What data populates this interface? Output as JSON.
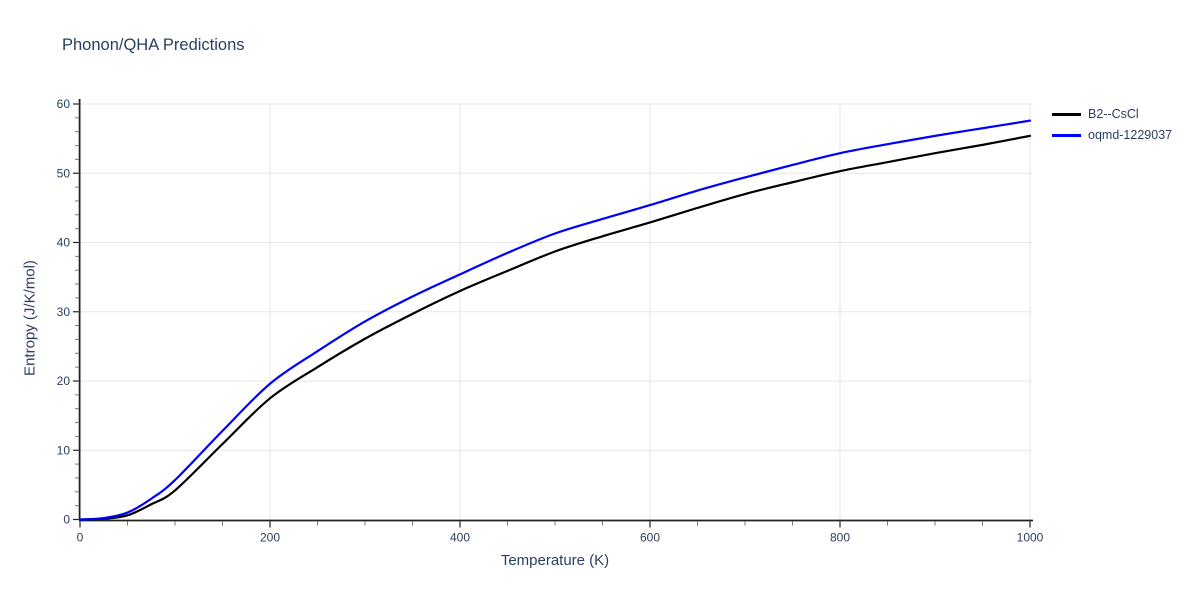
{
  "page": {
    "background": "#ffffff"
  },
  "chart_data": {
    "type": "line",
    "title": "Phonon/QHA Predictions",
    "xlabel": "Temperature (K)",
    "ylabel": "Entropy (J/K/mol)",
    "xlim": [
      0,
      1000
    ],
    "ylim": [
      0,
      60
    ],
    "x_major_ticks": [
      0,
      200,
      400,
      600,
      800,
      1000
    ],
    "x_minor_tick_step": 50,
    "y_major_ticks": [
      0,
      10,
      20,
      30,
      40,
      50,
      60
    ],
    "y_minor_tick_step": 2,
    "grid": true,
    "legend_position": "top-right",
    "colors": {
      "text": "#2a3f5f",
      "grid": "#e6e6e6",
      "axis": "#222222",
      "major_tick": "#222222",
      "minor_tick": "#777777"
    },
    "x": [
      0,
      25,
      50,
      75,
      100,
      150,
      200,
      250,
      300,
      350,
      400,
      450,
      500,
      550,
      600,
      650,
      700,
      750,
      800,
      850,
      900,
      950,
      1000
    ],
    "series": [
      {
        "name": "B2--CsCl",
        "color": "#000000",
        "values": [
          0,
          0.1,
          0.6,
          2.2,
          4.2,
          10.9,
          17.5,
          22.0,
          26.1,
          29.7,
          33.0,
          35.9,
          38.7,
          40.9,
          42.9,
          45.0,
          47.0,
          48.7,
          50.3,
          51.6,
          52.9,
          54.1,
          55.4
        ]
      },
      {
        "name": "oqmd-1229037",
        "color": "#0000ff",
        "values": [
          0,
          0.2,
          1.0,
          3.0,
          5.7,
          12.8,
          19.6,
          24.3,
          28.6,
          32.2,
          35.4,
          38.5,
          41.3,
          43.4,
          45.4,
          47.5,
          49.4,
          51.2,
          52.9,
          54.2,
          55.4,
          56.5,
          57.6
        ]
      }
    ]
  }
}
